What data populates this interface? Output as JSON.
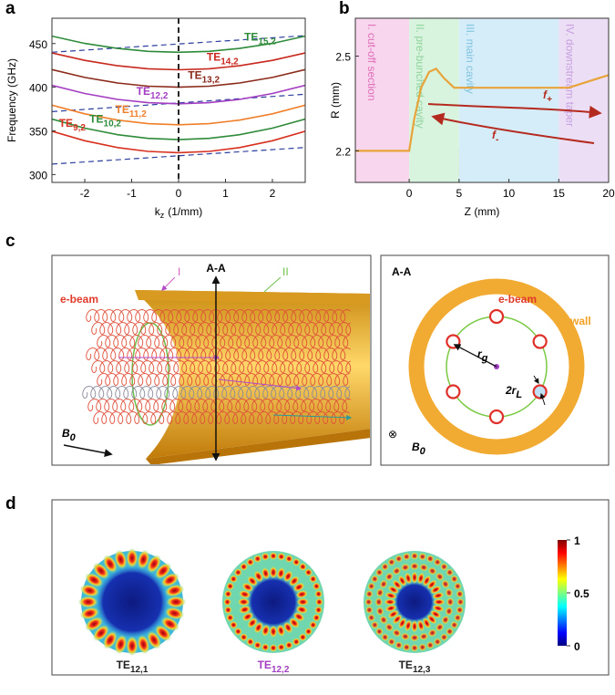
{
  "panel_labels": [
    "a",
    "b",
    "c",
    "d"
  ],
  "chart_data": [
    {
      "type": "line",
      "ylabel": "Frequency (GHz)",
      "xlabel": {
        "main": "k",
        "sub": "z",
        "rest": "(1/mm)"
      },
      "x": [
        -2.7,
        -2,
        -1.3,
        -0.65,
        0,
        0.65,
        1.3,
        2,
        2.7
      ],
      "xlim": [
        -2.7,
        2.7
      ],
      "xticks": [
        -2,
        -1,
        0,
        1,
        2
      ],
      "ylim": [
        291,
        479
      ],
      "yticks": [
        300,
        350,
        400,
        450
      ],
      "marker_x": 0,
      "series": [
        {
          "name": "TE",
          "sub": "9,2",
          "color": "#d7301f",
          "values": [
            349.6,
            338.7,
            330.9,
            326.5,
            325,
            326.5,
            330.9,
            338.7,
            349.6
          ]
        },
        {
          "name": "TE",
          "sub": "10,2",
          "color": "#2e8b3a",
          "values": [
            363.6,
            353.1,
            345.6,
            341.4,
            340,
            341.4,
            345.6,
            353.1,
            363.6
          ]
        },
        {
          "name": "TE",
          "sub": "11,2",
          "color": "#f07f2a",
          "values": [
            379.5,
            369.5,
            362.3,
            358.3,
            357,
            358.3,
            362.3,
            369.5,
            379.5
          ]
        },
        {
          "name": "TE",
          "sub": "12,2",
          "color": "#a33ec2",
          "values": [
            402.2,
            392.8,
            386.0,
            382.3,
            381,
            382.3,
            386.0,
            392.8,
            402.2
          ]
        },
        {
          "name": "TE",
          "sub": "13,2",
          "color": "#8b2a1a",
          "values": [
            420.2,
            411.2,
            404.8,
            401.2,
            400,
            401.2,
            404.8,
            411.2,
            420.2
          ]
        },
        {
          "name": "TE",
          "sub": "14,2",
          "color": "#c8281e",
          "values": [
            439.3,
            430.7,
            424.6,
            421.1,
            420,
            421.1,
            424.6,
            430.7,
            439.3
          ]
        },
        {
          "name": "TE",
          "sub": "15,2",
          "color": "#2e8b3a",
          "values": [
            458.5,
            450.2,
            444.4,
            441.1,
            440,
            441.1,
            444.4,
            450.2,
            458.5
          ]
        }
      ],
      "beam_lines": {
        "x": [
          -2.7,
          2.7
        ],
        "color": "#2d3f9e",
        "series": [
          {
            "values": [
              312,
              331
            ]
          },
          {
            "values": [
              372,
              392
            ]
          },
          {
            "values": [
              440,
              459
            ]
          }
        ]
      }
    },
    {
      "type": "line",
      "ylabel": "R (mm)",
      "xlabel": "Z (mm)",
      "x": [
        -5.4,
        0,
        0.5,
        1.2,
        2,
        2.7,
        3.5,
        4.5,
        5,
        15,
        16,
        18,
        20
      ],
      "values": [
        2.2,
        2.2,
        2.3,
        2.4,
        2.45,
        2.46,
        2.43,
        2.4,
        2.4,
        2.4,
        2.4,
        2.42,
        2.44
      ],
      "color": "#e8a43a",
      "xlim": [
        -5.4,
        20
      ],
      "xticks": [
        0,
        5,
        10,
        15,
        20
      ],
      "ylim": [
        2.1,
        2.62
      ],
      "yticks": [
        2.2,
        2.5
      ],
      "regions": [
        {
          "label": "I. cut-off section",
          "start": -5.4,
          "end": 0,
          "color": "#f7d6ee",
          "text_color": "#e070b8"
        },
        {
          "label": "II. pre-bunched cavity",
          "start": 0,
          "end": 5,
          "color": "#d8f3de",
          "text_color": "#8fd49c"
        },
        {
          "label": "III. main cavity",
          "start": 5,
          "end": 15,
          "color": "#d5edf8",
          "text_color": "#80c4e0"
        },
        {
          "label": "IV. downstream taper",
          "start": 15,
          "end": 20,
          "color": "#ecdff5",
          "text_color": "#c79fe0"
        }
      ],
      "annotations": [
        {
          "main": "f",
          "sub": "+"
        },
        {
          "main": "f",
          "sub": "-"
        }
      ],
      "arrow_color": "#b52a1e"
    }
  ],
  "diagram_c": {
    "left": {
      "mark_1": "I",
      "mark_2": "II",
      "section": "A-A",
      "beam": "e-beam",
      "field": {
        "main": "B",
        "sub": "0"
      }
    },
    "right": {
      "section": "A-A",
      "beam": "e-beam",
      "wall": "wall",
      "rg": {
        "main": "r",
        "sub": "g"
      },
      "rl": {
        "main": "2r",
        "sub": "L"
      },
      "symbol": "⊗",
      "field": {
        "main": "B",
        "sub": "0"
      }
    }
  },
  "figure_d": {
    "modes": [
      {
        "name": "TE",
        "sub": "12,1",
        "color": "#222222"
      },
      {
        "name": "TE",
        "sub": "12,2",
        "color": "#a33ec2"
      },
      {
        "name": "TE",
        "sub": "12,3",
        "color": "#222222"
      }
    ],
    "colorbar": {
      "clim": [
        0,
        1
      ],
      "ticks": [
        0,
        0.5,
        1
      ]
    }
  }
}
